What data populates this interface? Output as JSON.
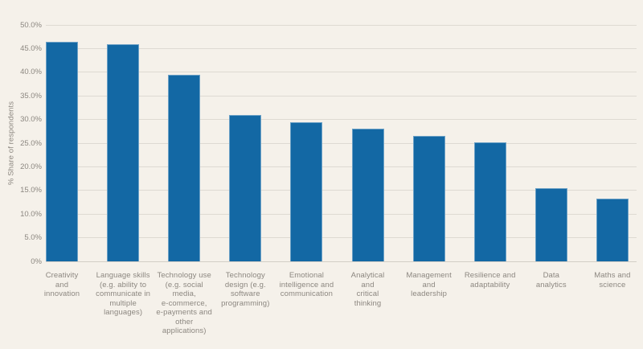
{
  "chart_data": {
    "type": "bar",
    "title": "",
    "xlabel": "",
    "ylabel": "% Share of respondents",
    "ylim": [
      0,
      50
    ],
    "grid": true,
    "legend": "none",
    "categories": [
      "Creativity\nand\ninnovation",
      "Language skills\n(e.g. ability to\ncommunicate in\nmultiple\nlanguages)",
      "Technology use\n(e.g. social\nmedia,\ne-commerce,\ne-payments and\nother\napplications)",
      "Technology\ndesign (e.g.\nsoftware\nprogramming)",
      "Emotional\nintelligence and\ncommunication",
      "Analytical\nand\ncritical\nthinking",
      "Management\nand\nleadership",
      "Resilience and\nadaptability",
      "Data\nanalytics",
      "Maths and\nscience"
    ],
    "values": [
      46.5,
      45.9,
      39.4,
      31.0,
      29.5,
      28.1,
      26.5,
      25.2,
      15.4,
      13.2
    ],
    "ytick_values": [
      0,
      5,
      10,
      15,
      20,
      25,
      30,
      35,
      40,
      45,
      50
    ],
    "ytick_labels": [
      "0%",
      "5.0%",
      "10.0%",
      "15.0%",
      "20.0%",
      "25.0%",
      "30.0%",
      "35.0%",
      "40.0%",
      "45.0%",
      "50.0%"
    ],
    "colors": {
      "bar": "#1368a4",
      "background": "#f5f1ea",
      "gridline": "#dedad2",
      "axis_line": "#d2cec6",
      "text": "#8c8780"
    }
  }
}
